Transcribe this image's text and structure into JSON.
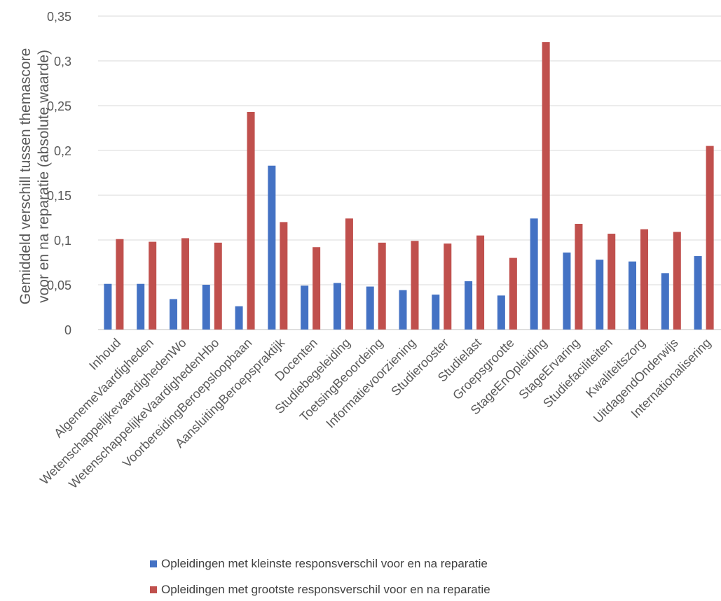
{
  "chart_data": {
    "type": "bar",
    "title": "",
    "xlabel": "",
    "ylabel_lines": [
      "Gemiddeld verschill tussen themascore",
      "voor en na reparatie  (absolute waarde)"
    ],
    "ylim": [
      0,
      0.35
    ],
    "yticks": [
      0,
      0.05,
      0.1,
      0.15,
      0.2,
      0.25,
      0.3,
      0.35
    ],
    "ytick_labels": [
      "0",
      "0,05",
      "0,1",
      "0,15",
      "0,2",
      "0,25",
      "0,3",
      "0,35"
    ],
    "grid": true,
    "legend_position": "bottom",
    "categories": [
      "Inhoud",
      "AlgenemeVaardigheden",
      "WetenschappelijkevaardighedenWo",
      "WetenschappelijkeVaardighedenHbo",
      "VoorbereidingBeroepsloopbaan",
      "AansluitingBeroepspraktijk",
      "Docenten",
      "Studiebegeleiding",
      "ToetsingBeoordeing",
      "Informatievoorziening",
      "Studierooster",
      "Studielast",
      "Groepsgrootte",
      "StageEnOpleiding",
      "StageErvaring",
      "Studiefaciliteiten",
      "Kwaliteitszorg",
      "UitdagendOnderwijs",
      "Internationalisering"
    ],
    "series": [
      {
        "name": "Opleidingen met kleinste responsverschil voor en na reparatie",
        "color": "#4472c4",
        "values": [
          0.051,
          0.051,
          0.034,
          0.05,
          0.026,
          0.183,
          0.049,
          0.052,
          0.048,
          0.044,
          0.039,
          0.054,
          0.038,
          0.124,
          0.086,
          0.078,
          0.076,
          0.063,
          0.082
        ]
      },
      {
        "name": "Opleidingen met grootste responsverschil voor en na reparatie",
        "color": "#c0504d",
        "values": [
          0.101,
          0.098,
          0.102,
          0.097,
          0.243,
          0.12,
          0.092,
          0.124,
          0.097,
          0.099,
          0.096,
          0.105,
          0.08,
          0.321,
          0.118,
          0.107,
          0.112,
          0.109,
          0.205
        ]
      }
    ]
  }
}
